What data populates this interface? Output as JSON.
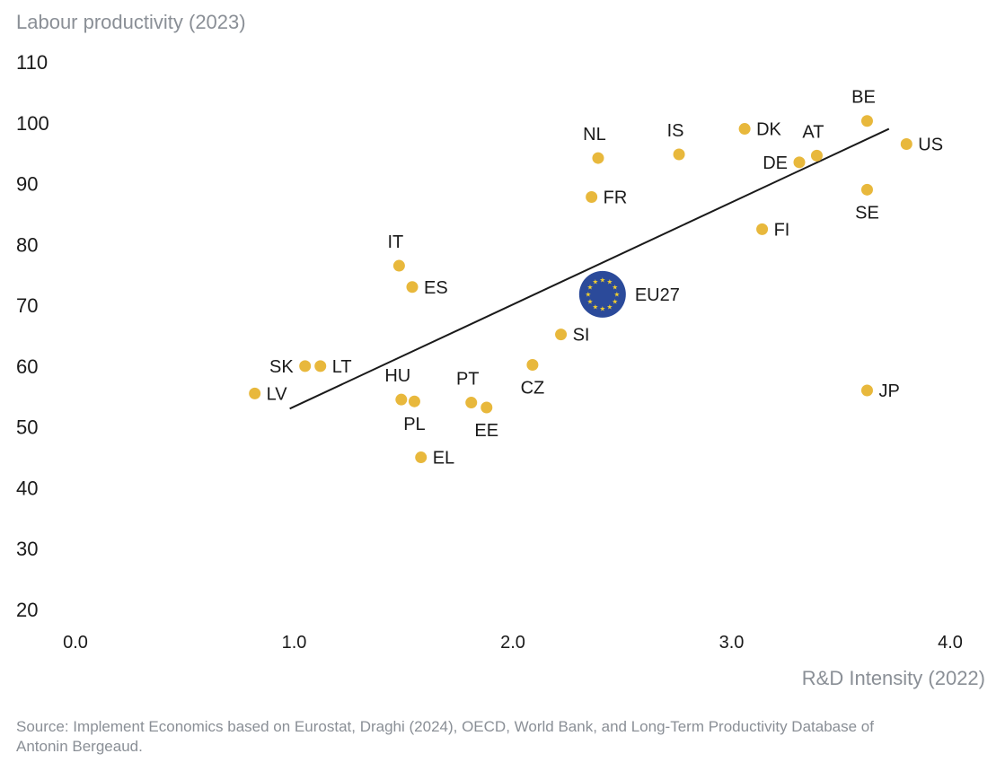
{
  "chart_data": {
    "type": "scatter",
    "title": "",
    "ylabel": "Labour productivity (2023)",
    "xlabel": "R&D Intensity (2022)",
    "xlim": [
      0.0,
      4.0
    ],
    "ylim": [
      20,
      110
    ],
    "xticks": [
      "0.0",
      "1.0",
      "2.0",
      "3.0",
      "4.0"
    ],
    "yticks": [
      "20",
      "30",
      "40",
      "50",
      "60",
      "70",
      "80",
      "90",
      "100",
      "110"
    ],
    "grid": false,
    "trendline": {
      "x1": 0.98,
      "y1": 53.0,
      "x2": 3.72,
      "y2": 99.0
    },
    "points": [
      {
        "label": "LV",
        "x": 0.82,
        "y": 55.5,
        "label_pos": "right"
      },
      {
        "label": "SK",
        "x": 1.05,
        "y": 60.0,
        "label_pos": "left"
      },
      {
        "label": "LT",
        "x": 1.12,
        "y": 60.0,
        "label_pos": "right"
      },
      {
        "label": "IT",
        "x": 1.48,
        "y": 76.5,
        "label_pos": "above"
      },
      {
        "label": "ES",
        "x": 1.54,
        "y": 73.0,
        "label_pos": "right"
      },
      {
        "label": "HU",
        "x": 1.49,
        "y": 54.5,
        "label_pos": "above"
      },
      {
        "label": "PL",
        "x": 1.55,
        "y": 54.2,
        "label_pos": "below"
      },
      {
        "label": "EL",
        "x": 1.58,
        "y": 45.0,
        "label_pos": "right"
      },
      {
        "label": "PT",
        "x": 1.81,
        "y": 54.0,
        "label_pos": "above"
      },
      {
        "label": "EE",
        "x": 1.88,
        "y": 53.2,
        "label_pos": "below"
      },
      {
        "label": "CZ",
        "x": 2.09,
        "y": 60.2,
        "label_pos": "below"
      },
      {
        "label": "SI",
        "x": 2.22,
        "y": 65.2,
        "label_pos": "right"
      },
      {
        "label": "EU27",
        "x": 2.41,
        "y": 71.8,
        "label_pos": "right",
        "highlight": true
      },
      {
        "label": "FR",
        "x": 2.36,
        "y": 87.8,
        "label_pos": "right"
      },
      {
        "label": "NL",
        "x": 2.39,
        "y": 94.2,
        "label_pos": "above"
      },
      {
        "label": "IS",
        "x": 2.76,
        "y": 94.8,
        "label_pos": "above"
      },
      {
        "label": "DK",
        "x": 3.06,
        "y": 99.0,
        "label_pos": "right"
      },
      {
        "label": "FI",
        "x": 3.14,
        "y": 82.5,
        "label_pos": "right"
      },
      {
        "label": "DE",
        "x": 3.31,
        "y": 93.5,
        "label_pos": "left"
      },
      {
        "label": "AT",
        "x": 3.39,
        "y": 94.6,
        "label_pos": "above"
      },
      {
        "label": "BE",
        "x": 3.62,
        "y": 100.3,
        "label_pos": "above"
      },
      {
        "label": "SE",
        "x": 3.62,
        "y": 89.0,
        "label_pos": "below"
      },
      {
        "label": "US",
        "x": 3.8,
        "y": 96.5,
        "label_pos": "right"
      },
      {
        "label": "JP",
        "x": 3.62,
        "y": 56.0,
        "label_pos": "right"
      }
    ],
    "colors": {
      "point": "#e8b83c",
      "trendline": "#1a1a1a",
      "eu_fill": "#2b4a9a",
      "eu_star": "#f2cf2e",
      "tick_text": "#1a1a1a",
      "axis_label": "#8a8f96"
    }
  },
  "source": "Source: Implement Economics based on Eurostat, Draghi (2024), OECD, World Bank, and Long-Term Productivity Database of Antonin Bergeaud."
}
